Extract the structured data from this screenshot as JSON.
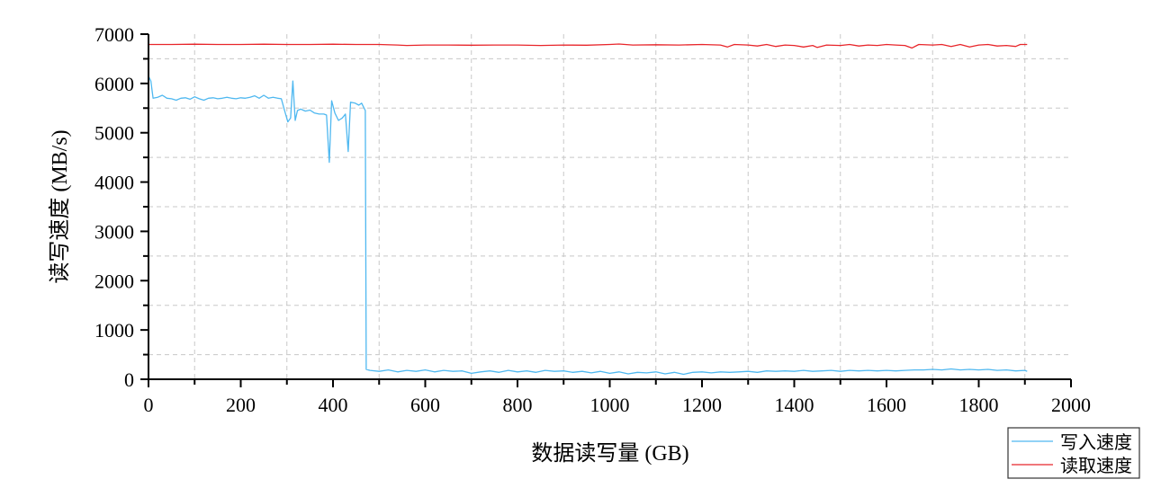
{
  "chart_data": {
    "type": "line",
    "xlabel": "数据读写量 (GB)",
    "ylabel": "读写速度 (MB/s)",
    "xlim": [
      0,
      2000
    ],
    "ylim": [
      0,
      7000
    ],
    "x_ticks": [
      0,
      200,
      400,
      600,
      800,
      1000,
      1200,
      1400,
      1600,
      1800,
      2000
    ],
    "y_ticks": [
      0,
      1000,
      2000,
      3000,
      4000,
      5000,
      6000,
      7000
    ],
    "grid": true,
    "legend_position": "bottom-right",
    "series": [
      {
        "name": "写入速度",
        "color": "#4fb8f0",
        "points": [
          [
            0,
            6150
          ],
          [
            5,
            6050
          ],
          [
            10,
            5700
          ],
          [
            20,
            5720
          ],
          [
            30,
            5760
          ],
          [
            40,
            5700
          ],
          [
            50,
            5690
          ],
          [
            60,
            5660
          ],
          [
            70,
            5700
          ],
          [
            80,
            5710
          ],
          [
            90,
            5680
          ],
          [
            100,
            5730
          ],
          [
            110,
            5690
          ],
          [
            120,
            5660
          ],
          [
            130,
            5700
          ],
          [
            140,
            5710
          ],
          [
            150,
            5690
          ],
          [
            160,
            5700
          ],
          [
            170,
            5720
          ],
          [
            180,
            5700
          ],
          [
            190,
            5690
          ],
          [
            200,
            5710
          ],
          [
            210,
            5700
          ],
          [
            220,
            5720
          ],
          [
            230,
            5750
          ],
          [
            240,
            5700
          ],
          [
            250,
            5760
          ],
          [
            260,
            5700
          ],
          [
            270,
            5720
          ],
          [
            280,
            5700
          ],
          [
            288,
            5690
          ],
          [
            295,
            5450
          ],
          [
            302,
            5220
          ],
          [
            308,
            5300
          ],
          [
            313,
            6050
          ],
          [
            318,
            5250
          ],
          [
            323,
            5450
          ],
          [
            330,
            5480
          ],
          [
            340,
            5440
          ],
          [
            350,
            5460
          ],
          [
            360,
            5400
          ],
          [
            370,
            5380
          ],
          [
            380,
            5380
          ],
          [
            386,
            5360
          ],
          [
            392,
            4400
          ],
          [
            397,
            5650
          ],
          [
            404,
            5400
          ],
          [
            412,
            5250
          ],
          [
            420,
            5300
          ],
          [
            427,
            5380
          ],
          [
            433,
            4620
          ],
          [
            438,
            5620
          ],
          [
            448,
            5600
          ],
          [
            456,
            5560
          ],
          [
            462,
            5600
          ],
          [
            470,
            5450
          ],
          [
            472,
            200
          ],
          [
            480,
            180
          ],
          [
            500,
            160
          ],
          [
            520,
            190
          ],
          [
            540,
            150
          ],
          [
            560,
            180
          ],
          [
            580,
            160
          ],
          [
            600,
            190
          ],
          [
            620,
            150
          ],
          [
            640,
            180
          ],
          [
            660,
            160
          ],
          [
            680,
            170
          ],
          [
            700,
            120
          ],
          [
            720,
            150
          ],
          [
            740,
            170
          ],
          [
            760,
            140
          ],
          [
            780,
            180
          ],
          [
            800,
            150
          ],
          [
            820,
            170
          ],
          [
            840,
            140
          ],
          [
            860,
            180
          ],
          [
            880,
            160
          ],
          [
            900,
            170
          ],
          [
            920,
            140
          ],
          [
            940,
            160
          ],
          [
            960,
            130
          ],
          [
            980,
            160
          ],
          [
            1000,
            120
          ],
          [
            1020,
            150
          ],
          [
            1040,
            110
          ],
          [
            1060,
            140
          ],
          [
            1080,
            130
          ],
          [
            1100,
            150
          ],
          [
            1120,
            110
          ],
          [
            1140,
            140
          ],
          [
            1160,
            100
          ],
          [
            1180,
            140
          ],
          [
            1200,
            150
          ],
          [
            1220,
            130
          ],
          [
            1240,
            150
          ],
          [
            1260,
            140
          ],
          [
            1280,
            150
          ],
          [
            1300,
            160
          ],
          [
            1320,
            140
          ],
          [
            1340,
            170
          ],
          [
            1360,
            160
          ],
          [
            1380,
            170
          ],
          [
            1400,
            160
          ],
          [
            1420,
            180
          ],
          [
            1440,
            160
          ],
          [
            1460,
            170
          ],
          [
            1480,
            180
          ],
          [
            1500,
            160
          ],
          [
            1520,
            180
          ],
          [
            1540,
            170
          ],
          [
            1560,
            180
          ],
          [
            1580,
            170
          ],
          [
            1600,
            180
          ],
          [
            1620,
            170
          ],
          [
            1640,
            180
          ],
          [
            1660,
            190
          ],
          [
            1680,
            190
          ],
          [
            1700,
            200
          ],
          [
            1720,
            190
          ],
          [
            1740,
            210
          ],
          [
            1760,
            190
          ],
          [
            1780,
            200
          ],
          [
            1800,
            190
          ],
          [
            1820,
            200
          ],
          [
            1840,
            180
          ],
          [
            1860,
            190
          ],
          [
            1880,
            170
          ],
          [
            1900,
            180
          ],
          [
            1905,
            160
          ]
        ]
      },
      {
        "name": "读取速度",
        "color": "#e8262b",
        "points": [
          [
            0,
            6790
          ],
          [
            50,
            6790
          ],
          [
            100,
            6795
          ],
          [
            150,
            6790
          ],
          [
            200,
            6790
          ],
          [
            250,
            6795
          ],
          [
            300,
            6790
          ],
          [
            350,
            6790
          ],
          [
            400,
            6795
          ],
          [
            450,
            6790
          ],
          [
            500,
            6790
          ],
          [
            540,
            6780
          ],
          [
            560,
            6770
          ],
          [
            600,
            6780
          ],
          [
            650,
            6780
          ],
          [
            700,
            6775
          ],
          [
            750,
            6780
          ],
          [
            800,
            6780
          ],
          [
            850,
            6770
          ],
          [
            900,
            6780
          ],
          [
            950,
            6775
          ],
          [
            1000,
            6790
          ],
          [
            1020,
            6800
          ],
          [
            1050,
            6780
          ],
          [
            1100,
            6785
          ],
          [
            1150,
            6780
          ],
          [
            1200,
            6790
          ],
          [
            1240,
            6780
          ],
          [
            1255,
            6740
          ],
          [
            1270,
            6790
          ],
          [
            1300,
            6780
          ],
          [
            1320,
            6760
          ],
          [
            1340,
            6790
          ],
          [
            1360,
            6750
          ],
          [
            1380,
            6780
          ],
          [
            1400,
            6770
          ],
          [
            1420,
            6740
          ],
          [
            1440,
            6770
          ],
          [
            1450,
            6730
          ],
          [
            1470,
            6780
          ],
          [
            1500,
            6770
          ],
          [
            1520,
            6790
          ],
          [
            1540,
            6760
          ],
          [
            1560,
            6780
          ],
          [
            1580,
            6770
          ],
          [
            1600,
            6790
          ],
          [
            1620,
            6780
          ],
          [
            1640,
            6770
          ],
          [
            1655,
            6720
          ],
          [
            1670,
            6790
          ],
          [
            1700,
            6780
          ],
          [
            1720,
            6790
          ],
          [
            1740,
            6750
          ],
          [
            1760,
            6790
          ],
          [
            1780,
            6740
          ],
          [
            1800,
            6780
          ],
          [
            1820,
            6790
          ],
          [
            1840,
            6760
          ],
          [
            1860,
            6770
          ],
          [
            1880,
            6750
          ],
          [
            1890,
            6790
          ],
          [
            1905,
            6790
          ]
        ]
      }
    ]
  }
}
